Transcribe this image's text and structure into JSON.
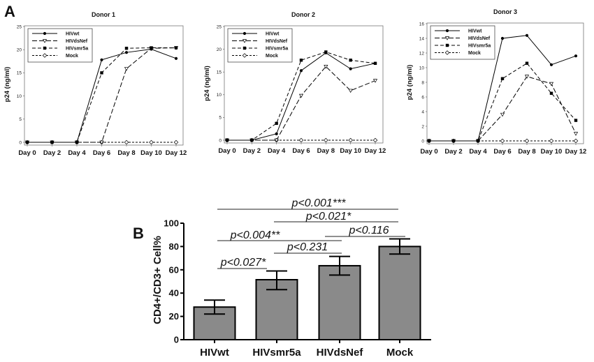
{
  "figure": {
    "panel_a_label": "A",
    "panel_b_label": "B"
  },
  "chart_data": [
    {
      "type": "line",
      "title": "Donor 1",
      "xlabel": "",
      "ylabel": "p24 (ng/ml)",
      "categories": [
        "Day 0",
        "Day 2",
        "Day 4",
        "Day 6",
        "Day 8",
        "Day 10",
        "Day 12"
      ],
      "ylim": [
        0,
        25
      ],
      "yticks": [
        0,
        5,
        10,
        15,
        20,
        25
      ],
      "legend_position": "top-left",
      "series": [
        {
          "name": "HIVwt",
          "values": [
            0,
            0,
            0,
            17.8,
            19.4,
            20.1,
            18.1
          ]
        },
        {
          "name": "HIVdsNef",
          "values": [
            0,
            0,
            0,
            0,
            15.9,
            20.3,
            20.4
          ]
        },
        {
          "name": "HIVsmr5a",
          "values": [
            0,
            0,
            0,
            15.0,
            20.3,
            20.4,
            20.4
          ]
        },
        {
          "name": "Mock",
          "values": [
            0,
            0,
            0,
            0,
            0,
            0,
            0
          ]
        }
      ]
    },
    {
      "type": "line",
      "title": "Donor 2",
      "xlabel": "",
      "ylabel": "p24 (ng/ml)",
      "categories": [
        "Day 0",
        "Day 2",
        "Day 4",
        "Day 6",
        "Day 8",
        "Day 10",
        "Day 12"
      ],
      "ylim": [
        0,
        25
      ],
      "yticks": [
        0,
        5,
        10,
        15,
        20,
        25
      ],
      "legend_position": "top-left",
      "series": [
        {
          "name": "HIVwt",
          "values": [
            0,
            0,
            1.4,
            15.3,
            19.2,
            15.7,
            16.9
          ]
        },
        {
          "name": "HIVdsNef",
          "values": [
            0,
            0,
            0,
            9.8,
            16.2,
            10.9,
            13.1
          ]
        },
        {
          "name": "HIVsmr5a",
          "values": [
            0,
            0,
            3.7,
            17.6,
            19.4,
            17.6,
            16.9
          ]
        },
        {
          "name": "Mock",
          "values": [
            0,
            0,
            0,
            0,
            0,
            0,
            0
          ]
        }
      ]
    },
    {
      "type": "line",
      "title": "Donor 3",
      "xlabel": "",
      "ylabel": "p24 (ng/ml)",
      "categories": [
        "Day 0",
        "Day 2",
        "Day 4",
        "Day 6",
        "Day 8",
        "Day 10",
        "Day 12"
      ],
      "ylim": [
        0,
        16
      ],
      "yticks": [
        0,
        2,
        4,
        6,
        8,
        10,
        12,
        14,
        16
      ],
      "legend_position": "top-left",
      "series": [
        {
          "name": "HIVwt",
          "values": [
            0,
            0,
            0,
            14.0,
            14.4,
            10.4,
            11.6
          ]
        },
        {
          "name": "HIVdsNef",
          "values": [
            0,
            0,
            0,
            3.6,
            8.8,
            7.8,
            1.0
          ]
        },
        {
          "name": "HIVsmr5a",
          "values": [
            0,
            0,
            0,
            8.5,
            10.6,
            6.5,
            2.8
          ]
        },
        {
          "name": "Mock",
          "values": [
            0,
            0,
            0,
            0,
            0,
            0,
            0
          ]
        }
      ]
    },
    {
      "type": "bar",
      "title": "",
      "xlabel": "",
      "ylabel": "CD4+/CD3+ Cell%",
      "categories": [
        "HIVwt",
        "HIVsmr5a",
        "HIVdsNef",
        "Mock"
      ],
      "values": [
        28,
        51.5,
        63.5,
        80
      ],
      "error_low": [
        22,
        43,
        55.5,
        73.5
      ],
      "error_high": [
        34,
        59,
        71.5,
        86.5
      ],
      "ylim": [
        0,
        100
      ],
      "yticks": [
        0,
        20,
        40,
        60,
        80,
        100
      ],
      "bar_color": "#8a8a8a",
      "annotations": [
        {
          "text": "p<0.027*",
          "from": "HIVwt",
          "to": "HIVsmr5a"
        },
        {
          "text": "p<0.231",
          "from": "HIVsmr5a",
          "to": "HIVdsNef"
        },
        {
          "text": "p<0.004**",
          "from": "HIVwt",
          "to": "HIVdsNef"
        },
        {
          "text": "p<0.116",
          "from": "HIVdsNef",
          "to": "Mock"
        },
        {
          "text": "p<0.021*",
          "from": "HIVsmr5a",
          "to": "Mock"
        },
        {
          "text": "p<0.001***",
          "from": "HIVwt",
          "to": "Mock"
        }
      ]
    }
  ]
}
